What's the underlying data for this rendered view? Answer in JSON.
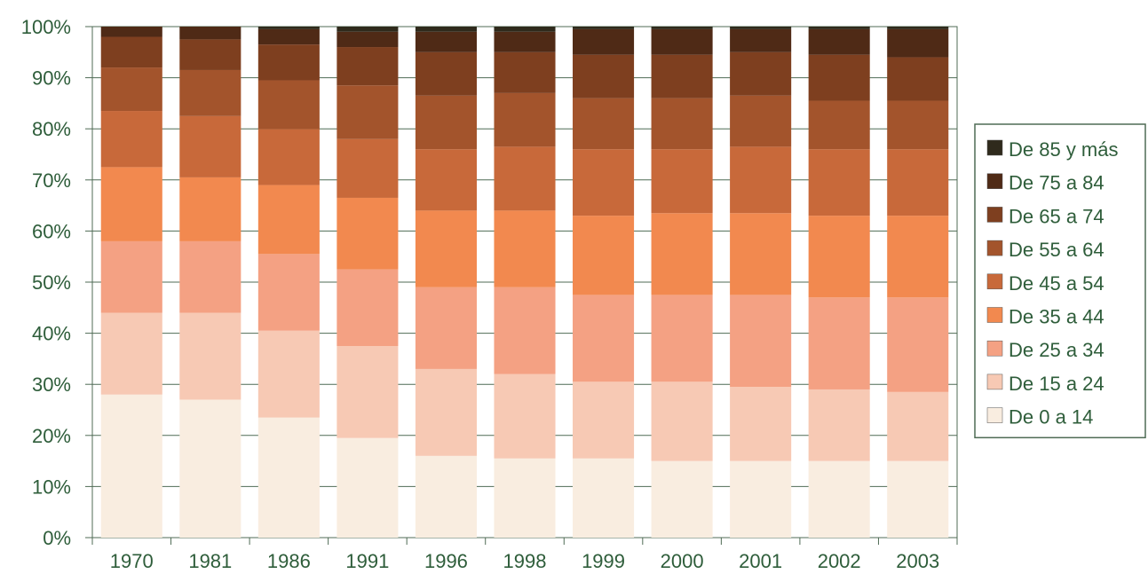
{
  "chart_data": {
    "type": "bar",
    "stacked": true,
    "normalized": true,
    "categories": [
      "1970",
      "1981",
      "1986",
      "1991",
      "1996",
      "1998",
      "1999",
      "2000",
      "2001",
      "2002",
      "2003"
    ],
    "ylim": [
      0,
      100
    ],
    "y_ticks": [
      "0%",
      "10%",
      "20%",
      "30%",
      "40%",
      "50%",
      "60%",
      "70%",
      "80%",
      "90%",
      "100%"
    ],
    "legend_position": "right",
    "grid": true,
    "series": [
      {
        "name": "De 0 a 14",
        "color": "#f9ede0",
        "values": [
          28,
          27,
          23.5,
          19.5,
          16,
          15.5,
          15.5,
          15,
          15,
          15,
          15
        ]
      },
      {
        "name": "De 15 a 24",
        "color": "#f7c9b4",
        "values": [
          16,
          17,
          17,
          18,
          17,
          16.5,
          15,
          15.5,
          14.5,
          14,
          13.5
        ]
      },
      {
        "name": "De 25 a 34",
        "color": "#f4a183",
        "values": [
          14,
          14,
          15,
          15,
          16,
          17,
          17,
          17,
          18,
          18,
          18.5
        ]
      },
      {
        "name": "De 35 a 44",
        "color": "#f2894f",
        "values": [
          14.5,
          12.5,
          13.5,
          14,
          15,
          15,
          15.5,
          16,
          16,
          16,
          16
        ]
      },
      {
        "name": "De 45 a 54",
        "color": "#c8693a",
        "values": [
          11,
          12,
          11,
          11.5,
          12,
          12.5,
          13,
          12.5,
          13,
          13,
          13
        ]
      },
      {
        "name": "De 55 a 64",
        "color": "#a3542c",
        "values": [
          8.5,
          9,
          9.5,
          10.5,
          10.5,
          10.5,
          10,
          10,
          10,
          9.5,
          9.5
        ]
      },
      {
        "name": "De 65 a 74",
        "color": "#7e3f1f",
        "values": [
          6,
          6,
          7,
          7.5,
          8.5,
          8,
          8.5,
          8.5,
          8.5,
          9,
          8.5
        ]
      },
      {
        "name": "De 75 a 84",
        "color": "#4f2a16",
        "values": [
          2,
          2.5,
          3,
          3,
          4,
          4,
          5,
          5,
          4.5,
          5,
          5.5
        ]
      },
      {
        "name": "De 85 y más",
        "color": "#2f2a1c",
        "values": [
          0,
          0,
          0.5,
          1,
          1,
          1,
          0.5,
          0.5,
          0.5,
          0.5,
          0.5
        ]
      }
    ]
  }
}
